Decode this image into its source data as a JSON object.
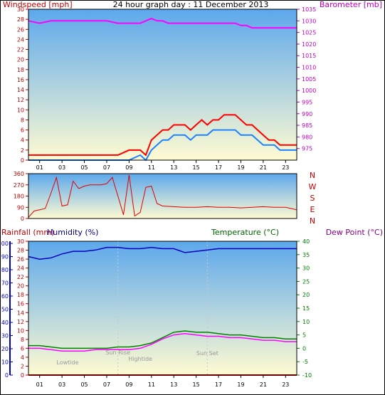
{
  "title": "24 hour graph day : 11 December 2013",
  "colors": {
    "wind_gust": "#ff0000",
    "wind_avg": "#1e82ff",
    "barometer": "#ff00ff",
    "direction": "#e00000",
    "rain": "#e00000",
    "humidity": "#0000c0",
    "temperature": "#008000",
    "dewpoint": "#ff00ff",
    "sky_top": "#5ca8ec",
    "sky_bottom": "#fffbd2"
  },
  "x_ticks": [
    "01",
    "03",
    "05",
    "07",
    "09",
    "11",
    "13",
    "15",
    "17",
    "19",
    "21",
    "23"
  ],
  "chart_data": [
    {
      "type": "line",
      "name": "wind-barometer",
      "ylabel": "Windspeed [mph]",
      "y2label": "Barometer [mb]",
      "ylim": [
        0,
        30
      ],
      "y2lim": [
        970,
        1035
      ],
      "yticks": [
        "0",
        "2",
        "4",
        "6",
        "8",
        "10",
        "12",
        "14",
        "16",
        "18",
        "20",
        "22",
        "24",
        "26",
        "28",
        "30"
      ],
      "y2ticks": [
        "975",
        "980",
        "985",
        "990",
        "995",
        "1000",
        "1005",
        "1010",
        "1015",
        "1020",
        "1025",
        "1030",
        "1035"
      ],
      "x": [
        0,
        1,
        2,
        3,
        4,
        5,
        6,
        7,
        8,
        9,
        10,
        10.5,
        11,
        11.5,
        12,
        12.5,
        13,
        13.5,
        14,
        14.5,
        15,
        15.5,
        16,
        16.5,
        17,
        17.5,
        18,
        18.5,
        19,
        19.5,
        20,
        20.5,
        21,
        21.5,
        22,
        22.5,
        23,
        23.5,
        24
      ],
      "series": [
        {
          "name": "gust",
          "values": [
            1,
            1,
            1,
            1,
            1,
            1,
            1,
            1,
            1,
            2,
            2,
            1,
            4,
            5,
            6,
            6,
            7,
            7,
            7,
            6,
            7,
            8,
            7,
            8,
            8,
            9,
            9,
            9,
            8,
            7,
            7,
            6,
            5,
            4,
            4,
            3,
            3,
            3,
            3
          ]
        },
        {
          "name": "average",
          "values": [
            0,
            0,
            0,
            0,
            0,
            0,
            0,
            0,
            0,
            0,
            1,
            0,
            2,
            3,
            4,
            4,
            5,
            5,
            5,
            4,
            5,
            5,
            5,
            6,
            6,
            6,
            6,
            6,
            5,
            5,
            5,
            4,
            3,
            3,
            3,
            2,
            2,
            2,
            2
          ]
        },
        {
          "name": "barometer",
          "values": [
            1030,
            1029,
            1030,
            1030,
            1030,
            1030,
            1030,
            1030,
            1029,
            1029,
            1029,
            1030,
            1031,
            1030,
            1030,
            1029,
            1029,
            1029,
            1029,
            1029,
            1029,
            1029,
            1029,
            1029,
            1029,
            1029,
            1029,
            1029,
            1028,
            1028,
            1027,
            1027,
            1027,
            1027,
            1027,
            1027,
            1027,
            1027,
            1027
          ]
        }
      ]
    },
    {
      "type": "line",
      "name": "wind-direction",
      "ylim": [
        0,
        360
      ],
      "yticks": [
        "0",
        "90",
        "180",
        "270",
        "360"
      ],
      "compass": [
        "N",
        "W",
        "S",
        "E",
        "N"
      ],
      "x": [
        0,
        0.5,
        1,
        1.5,
        2,
        2.5,
        3,
        3.5,
        4,
        4.5,
        5,
        5.5,
        6,
        6.5,
        7,
        7.5,
        8,
        8.5,
        9,
        9.5,
        10,
        10.5,
        11,
        11.5,
        12,
        13,
        14,
        15,
        16,
        17,
        18,
        19,
        20,
        21,
        22,
        23,
        24
      ],
      "series": [
        {
          "name": "direction",
          "values": [
            10,
            60,
            70,
            80,
            200,
            330,
            100,
            110,
            300,
            240,
            260,
            270,
            270,
            270,
            280,
            330,
            180,
            30,
            350,
            20,
            50,
            250,
            260,
            120,
            100,
            95,
            90,
            90,
            95,
            90,
            90,
            85,
            90,
            95,
            90,
            90,
            70
          ]
        }
      ]
    },
    {
      "type": "line",
      "name": "rain-humidity-temperature",
      "ylabel": "Rainfall (mm)",
      "ylabel2": "Humidity (%)",
      "y2label": "Temperature (°C)",
      "y2label2": "Dew Point (°C)",
      "rain_ticks": [
        "0",
        "2",
        "4",
        "6",
        "8",
        "10",
        "12",
        "14",
        "16",
        "18",
        "20",
        "22",
        "24",
        "26",
        "28",
        "30"
      ],
      "humidity_ticks": [
        "0",
        "10",
        "20",
        "30",
        "40",
        "50",
        "60",
        "70",
        "80",
        "90",
        "100"
      ],
      "temp_ticks": [
        "-10",
        "-5",
        "0",
        "5",
        "10",
        "15",
        "20",
        "25",
        "30",
        "35",
        "40"
      ],
      "annotations": [
        "Lowtide",
        "Sun Rise",
        "Hightide",
        "Sun Set"
      ],
      "x": [
        0,
        1,
        2,
        3,
        4,
        5,
        6,
        7,
        8,
        9,
        10,
        11,
        12,
        13,
        14,
        15,
        16,
        17,
        18,
        19,
        20,
        21,
        22,
        23,
        24
      ],
      "series": [
        {
          "name": "rain",
          "values": [
            0,
            0,
            0,
            0,
            0,
            0,
            0,
            0,
            0,
            0,
            0,
            0,
            0,
            0,
            0,
            0,
            0,
            0,
            0,
            0,
            0,
            0,
            0,
            0,
            0
          ]
        },
        {
          "name": "humidity",
          "values": [
            90,
            88,
            89,
            92,
            94,
            94,
            95,
            97,
            97,
            96,
            96,
            97,
            96,
            96,
            93,
            94,
            95,
            96,
            96,
            96,
            96,
            96,
            96,
            96,
            96
          ]
        },
        {
          "name": "temperature",
          "values": [
            1,
            1,
            0.5,
            0,
            0,
            0,
            0,
            0,
            0.5,
            0.5,
            1,
            2,
            4,
            6,
            6.5,
            6,
            6,
            5.5,
            5,
            5,
            4.5,
            4,
            4,
            3.5,
            3.5
          ]
        },
        {
          "name": "dewpoint",
          "values": [
            0,
            0,
            -0.5,
            -1,
            -1,
            -1,
            -0.5,
            -0.5,
            -0.5,
            -0.5,
            0,
            1.5,
            3.5,
            5,
            5.5,
            5,
            4.5,
            4.5,
            4,
            4,
            3.5,
            3,
            3,
            2.5,
            2.5
          ]
        }
      ]
    }
  ]
}
